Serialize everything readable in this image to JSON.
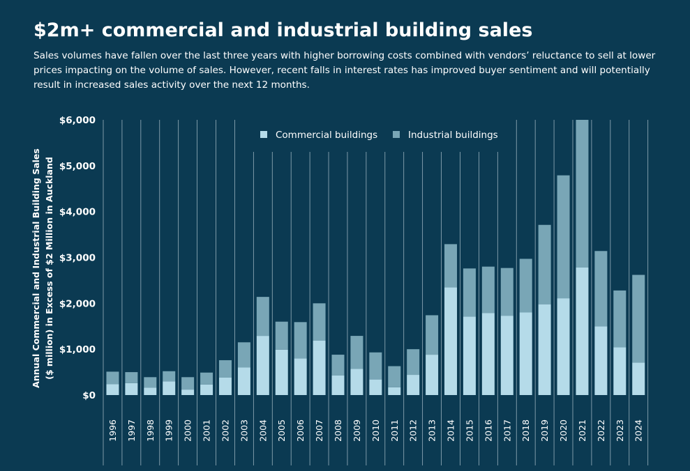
{
  "title": "$2m+ commercial and industrial building sales",
  "subtitle": "Sales volumes have fallen over the last three years with higher borrowing costs combined with vendors’ reluctance to sell at lower prices impacting on the volume of sales. However, recent falls in interest rates has improved buyer sentiment and will potentially result in increased sales activity over the next 12 months.",
  "colors": {
    "background": "#0b3a52",
    "commercial": "#b5dbe9",
    "industrial": "#79a6b6",
    "gridline": "#c9d9e1",
    "text": "#ffffff"
  },
  "chart_data": {
    "type": "bar",
    "stacked": true,
    "ylabel": [
      "Annual Commercial and Industrial Building Sales",
      "($ million) in Excess of $2 Million in Auckland"
    ],
    "ylim": [
      0,
      6000
    ],
    "yticks": [
      0,
      1000,
      2000,
      3000,
      4000,
      5000,
      6000
    ],
    "ytick_labels": [
      "$0",
      "$1,000",
      "$2,000",
      "$3,000",
      "$4,000",
      "$5,000",
      "$6,000"
    ],
    "legend_position": "top-center",
    "categories": [
      "1996",
      "1997",
      "1998",
      "1999",
      "2000",
      "2001",
      "2002",
      "2003",
      "2004",
      "2005",
      "2006",
      "2007",
      "2008",
      "2009",
      "2010",
      "2011",
      "2012",
      "2013",
      "2014",
      "2015",
      "2016",
      "2017",
      "2018",
      "2019",
      "2020",
      "2021",
      "2022",
      "2023",
      "2024"
    ],
    "series": [
      {
        "name": "Commercial buildings",
        "values": [
          240,
          260,
          160,
          300,
          120,
          230,
          380,
          600,
          1290,
          990,
          800,
          1190,
          430,
          570,
          340,
          170,
          440,
          880,
          2350,
          1710,
          1790,
          1730,
          1800,
          1980,
          2110,
          2780,
          1500,
          1040,
          710
        ]
      },
      {
        "name": "Industrial buildings",
        "values": [
          270,
          240,
          230,
          220,
          270,
          260,
          380,
          550,
          850,
          610,
          790,
          810,
          450,
          720,
          590,
          460,
          560,
          860,
          940,
          1050,
          1010,
          1040,
          1170,
          1730,
          2680,
          3220,
          1640,
          1240,
          1910
        ]
      }
    ]
  }
}
